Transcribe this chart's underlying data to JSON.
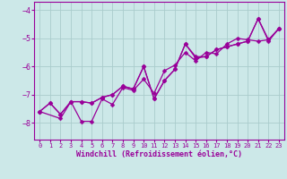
{
  "bg_color": "#cce8e8",
  "grid_color": "#aacccc",
  "line_color": "#990099",
  "marker": "D",
  "marker_size": 2.5,
  "line_width": 0.9,
  "xlabel": "Windchill (Refroidissement éolien,°C)",
  "xlabel_fontsize": 6,
  "xtick_fontsize": 5,
  "ytick_fontsize": 6,
  "xlim": [
    -0.5,
    23.5
  ],
  "ylim": [
    -8.6,
    -3.7
  ],
  "yticks": [
    -8,
    -7,
    -6,
    -5,
    -4
  ],
  "xticks": [
    0,
    1,
    2,
    3,
    4,
    5,
    6,
    7,
    8,
    9,
    10,
    11,
    12,
    13,
    14,
    15,
    16,
    17,
    18,
    19,
    20,
    21,
    22,
    23
  ],
  "line1_x": [
    0,
    1,
    2,
    3,
    4,
    5,
    6,
    7,
    8,
    9,
    10,
    11,
    12,
    13,
    14,
    15,
    16,
    17,
    18,
    19,
    20,
    21,
    22,
    23
  ],
  "line1_y": [
    -7.6,
    -7.3,
    -7.7,
    -7.25,
    -7.25,
    -7.3,
    -7.1,
    -7.0,
    -6.7,
    -6.8,
    -6.0,
    -7.15,
    -6.5,
    -6.1,
    -5.2,
    -5.7,
    -5.65,
    -5.4,
    -5.3,
    -5.2,
    -5.1,
    -4.3,
    -5.1,
    -4.65
  ],
  "line2_x": [
    0,
    2,
    3,
    4,
    5,
    6,
    7,
    8,
    9,
    10,
    11,
    12,
    13,
    14,
    15,
    16,
    17,
    18,
    19,
    20,
    21,
    22,
    23
  ],
  "line2_y": [
    -7.6,
    -7.85,
    -7.25,
    -7.95,
    -7.95,
    -7.15,
    -7.35,
    -6.75,
    -6.85,
    -6.45,
    -6.95,
    -6.15,
    -5.95,
    -5.5,
    -5.8,
    -5.5,
    -5.55,
    -5.2,
    -5.0,
    -5.05,
    -5.1,
    -5.05,
    -4.65
  ],
  "line3_x": [
    0,
    1,
    2,
    3,
    4,
    5,
    6,
    7,
    8,
    9,
    10,
    11,
    12,
    13,
    14,
    15,
    16,
    17,
    18,
    19,
    20,
    21,
    22,
    23
  ],
  "line3_y": [
    -7.6,
    -7.3,
    -7.7,
    -7.25,
    -7.25,
    -7.3,
    -7.1,
    -7.0,
    -6.7,
    -6.8,
    -6.0,
    -7.15,
    -6.5,
    -6.1,
    -5.2,
    -5.65,
    -5.65,
    -5.4,
    -5.3,
    -5.2,
    -5.1,
    -4.3,
    -5.05,
    -4.65
  ]
}
